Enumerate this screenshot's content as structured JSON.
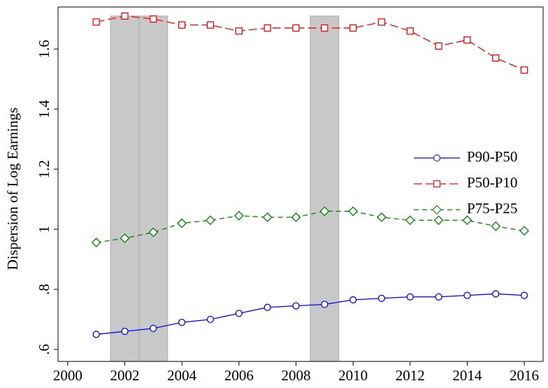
{
  "chart_data": {
    "type": "line",
    "y_label": "Dispersion of Log Earnings",
    "x": [
      2001,
      2002,
      2003,
      2004,
      2005,
      2006,
      2007,
      2008,
      2009,
      2010,
      2011,
      2012,
      2013,
      2014,
      2015,
      2016
    ],
    "series": [
      {
        "name": "P90-P50",
        "color": "#0000ff",
        "marker": "circle",
        "dash": "none",
        "values": [
          0.65,
          0.66,
          0.67,
          0.69,
          0.7,
          0.72,
          0.74,
          0.745,
          0.75,
          0.765,
          0.77,
          0.775,
          0.775,
          0.78,
          0.785,
          0.78
        ]
      },
      {
        "name": "P50-P10",
        "color": "#ff0000",
        "marker": "square",
        "dash": "12 5",
        "values": [
          1.69,
          1.71,
          1.7,
          1.68,
          1.68,
          1.66,
          1.67,
          1.67,
          1.67,
          1.67,
          1.69,
          1.66,
          1.61,
          1.63,
          1.57,
          1.53
        ]
      },
      {
        "name": "P75-P25",
        "color": "#008000",
        "marker": "diamond",
        "dash": "7 5",
        "values": [
          0.956,
          0.97,
          0.99,
          1.02,
          1.03,
          1.045,
          1.04,
          1.04,
          1.06,
          1.06,
          1.04,
          1.03,
          1.03,
          1.03,
          1.01,
          0.995
        ]
      }
    ],
    "bands": [
      [
        2001.5,
        2002.5
      ],
      [
        2002.5,
        2003.5
      ],
      [
        2008.5,
        2009.5
      ]
    ],
    "band_top": 1.71,
    "band_color": "#c8c8c8",
    "xlim": [
      1999.66,
      2016.66
    ],
    "xticks": [
      2000,
      2002,
      2004,
      2006,
      2008,
      2010,
      2012,
      2014,
      2016
    ],
    "ylim": [
      0.56,
      1.74
    ],
    "yticks": [
      {
        "value": 0.6,
        "label": ".6"
      },
      {
        "value": 0.8,
        "label": ".8"
      },
      1,
      1.2,
      1.4,
      1.6
    ],
    "grid": false,
    "legend": "right"
  }
}
